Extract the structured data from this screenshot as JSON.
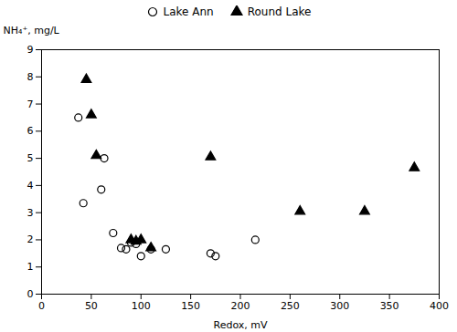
{
  "chart_data": {
    "type": "scatter",
    "xlabel": "Redox, mV",
    "ylabel": "NH₄⁺, mg/L",
    "xlim": [
      0,
      400
    ],
    "ylim": [
      0,
      9
    ],
    "xticks": [
      0,
      50,
      100,
      150,
      200,
      250,
      300,
      350,
      400
    ],
    "yticks": [
      0,
      1,
      2,
      3,
      4,
      5,
      6,
      7,
      8,
      9
    ],
    "grid": false,
    "legend": "top",
    "series": [
      {
        "name": "Lake Ann",
        "color": "#000000",
        "marker": "circle-open",
        "x": [
          37,
          42,
          60,
          63,
          72,
          80,
          85,
          90,
          95,
          100,
          110,
          125,
          170,
          175,
          215
        ],
        "values": [
          6.5,
          3.35,
          3.85,
          5.0,
          2.25,
          1.7,
          1.65,
          1.9,
          1.85,
          1.4,
          1.65,
          1.65,
          1.5,
          1.4,
          2.0
        ]
      },
      {
        "name": "Round Lake",
        "color": "#000000",
        "marker": "triangle",
        "x": [
          45,
          50,
          55,
          90,
          95,
          100,
          110,
          170,
          260,
          325,
          375
        ],
        "values": [
          7.9,
          6.6,
          5.1,
          2.0,
          1.95,
          2.0,
          1.7,
          5.05,
          3.05,
          3.05,
          4.65
        ]
      }
    ]
  }
}
